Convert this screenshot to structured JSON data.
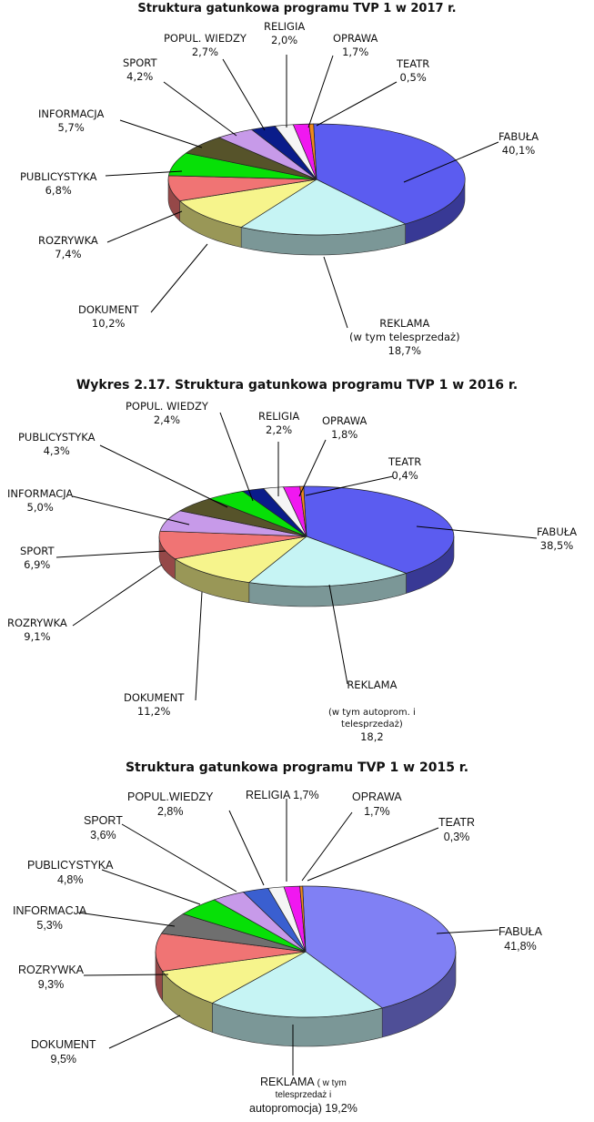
{
  "charts": [
    {
      "title": "Struktura gatunkowa programu TVP 1 w 2017 r.",
      "slices": [
        {
          "name": "FABUŁA",
          "value": 40.1,
          "label": "40,1%",
          "color": "#5b5cf0"
        },
        {
          "name": "REKLAMA",
          "name2": "(w tym telesprzedaż)",
          "value": 18.7,
          "label": "18,7%",
          "color": "#c6f4f4"
        },
        {
          "name": "DOKUMENT",
          "value": 10.2,
          "label": "10,2%",
          "color": "#f6f48c"
        },
        {
          "name": "ROZRYWKA",
          "value": 7.4,
          "label": "7,4%",
          "color": "#f07474"
        },
        {
          "name": "PUBLICYSTYKA",
          "value": 6.8,
          "label": "6,8%",
          "color": "#07e007"
        },
        {
          "name": "INFORMACJA",
          "value": 5.7,
          "label": "5,7%",
          "color": "#56532a"
        },
        {
          "name": "SPORT",
          "value": 4.2,
          "label": "4,2%",
          "color": "#c79ae9"
        },
        {
          "name": "POPUL. WIEDZY",
          "value": 2.7,
          "label": "2,7%",
          "color": "#0a1c8a"
        },
        {
          "name": "RELIGIA",
          "value": 2.0,
          "label": "2,0%",
          "color": "#f5f5f5"
        },
        {
          "name": "OPRAWA",
          "value": 1.7,
          "label": "1,7%",
          "color": "#f018f0"
        },
        {
          "name": "TEATR",
          "value": 0.5,
          "label": "0,5%",
          "color": "#f08a1a"
        }
      ]
    },
    {
      "title": "Wykres 2.17.  Struktura gatunkowa programu TVP 1 w 2016 r.",
      "slices": [
        {
          "name": "FABUŁA",
          "value": 38.5,
          "label": "38,5%",
          "color": "#5b5cf0"
        },
        {
          "name": "REKLAMA",
          "name2": "(w tym autoprom. i",
          "name3": "telesprzedaż)",
          "value": 18.2,
          "label": "18,2",
          "color": "#c6f4f4"
        },
        {
          "name": "DOKUMENT",
          "value": 11.2,
          "label": "11,2%",
          "color": "#f6f48c"
        },
        {
          "name": "ROZRYWKA",
          "value": 9.1,
          "label": "9,1%",
          "color": "#f07474"
        },
        {
          "name": "SPORT",
          "value": 6.9,
          "label": "6,9%",
          "color": "#c79ae9"
        },
        {
          "name": "INFORMACJA",
          "value": 5.0,
          "label": "5,0%",
          "color": "#56532a"
        },
        {
          "name": "PUBLICYSTYKA",
          "value": 4.3,
          "label": "4,3%",
          "color": "#07e007"
        },
        {
          "name": "POPUL. WIEDZY",
          "value": 2.4,
          "label": "2,4%",
          "color": "#0a1c8a"
        },
        {
          "name": "RELIGIA",
          "value": 2.2,
          "label": "2,2%",
          "color": "#f5f5f5"
        },
        {
          "name": "OPRAWA",
          "value": 1.8,
          "label": "1,8%",
          "color": "#f018f0"
        },
        {
          "name": "TEATR",
          "value": 0.4,
          "label": "0,4%",
          "color": "#f08a1a"
        }
      ]
    },
    {
      "title": "Struktura gatunkowa programu TVP 1 w 2015 r.",
      "slices": [
        {
          "name": "FABUŁA",
          "value": 41.8,
          "label": "41,8%",
          "color": "#8080f4"
        },
        {
          "name": "REKLAMA",
          "name_tail": "( w tym",
          "name2": "telesprzedaż i",
          "name3": "autopromocja) 19,2%",
          "value": 19.2,
          "label": "",
          "color": "#c6f4f4"
        },
        {
          "name": "DOKUMENT",
          "value": 9.5,
          "label": "9,5%",
          "color": "#f6f48c"
        },
        {
          "name": "ROZRYWKA",
          "value": 9.3,
          "label": "9,3%",
          "color": "#f07474"
        },
        {
          "name": "INFORMACJA",
          "value": 5.3,
          "label": "5,3%",
          "color": "#6f6f6f"
        },
        {
          "name": "PUBLICYSTYKA",
          "value": 4.8,
          "label": "4,8%",
          "color": "#07e007"
        },
        {
          "name": "SPORT",
          "value": 3.6,
          "label": "3,6%",
          "color": "#c79ae9"
        },
        {
          "name": "POPUL.WIEDZY",
          "value": 2.8,
          "label": "2,8%",
          "color": "#3a5fd0"
        },
        {
          "name": "RELIGIA",
          "value": 1.7,
          "label": "1,7%",
          "color": "#f5f5f5"
        },
        {
          "name": "OPRAWA",
          "value": 1.7,
          "label": "1,7%",
          "color": "#f018f0"
        },
        {
          "name": "TEATR",
          "value": 0.3,
          "label": "0,3%",
          "color": "#f08a1a"
        }
      ]
    }
  ],
  "chart_data": [
    {
      "type": "pie",
      "title": "Struktura gatunkowa programu TVP 1 w 2017 r.",
      "categories": [
        "FABUŁA",
        "REKLAMA (w tym telesprzedaż)",
        "DOKUMENT",
        "ROZRYWKA",
        "PUBLICYSTYKA",
        "INFORMACJA",
        "SPORT",
        "POPUL. WIEDZY",
        "RELIGIA",
        "OPRAWA",
        "TEATR"
      ],
      "values": [
        40.1,
        18.7,
        10.2,
        7.4,
        6.8,
        5.7,
        4.2,
        2.7,
        2.0,
        1.7,
        0.5
      ]
    },
    {
      "type": "pie",
      "title": "Wykres 2.17.  Struktura gatunkowa programu TVP 1 w 2016 r.",
      "categories": [
        "FABUŁA",
        "REKLAMA (w tym autoprom. i telesprzedaż)",
        "DOKUMENT",
        "ROZRYWKA",
        "SPORT",
        "INFORMACJA",
        "PUBLICYSTYKA",
        "POPUL. WIEDZY",
        "RELIGIA",
        "OPRAWA",
        "TEATR"
      ],
      "values": [
        38.5,
        18.2,
        11.2,
        9.1,
        6.9,
        5.0,
        4.3,
        2.4,
        2.2,
        1.8,
        0.4
      ]
    },
    {
      "type": "pie",
      "title": "Struktura gatunkowa programu TVP 1 w 2015 r.",
      "categories": [
        "FABUŁA",
        "REKLAMA ( w tym telesprzedaż i autopromocja)",
        "DOKUMENT",
        "ROZRYWKA",
        "INFORMACJA",
        "PUBLICYSTYKA",
        "SPORT",
        "POPUL.WIEDZY",
        "RELIGIA",
        "OPRAWA",
        "TEATR"
      ],
      "values": [
        41.8,
        19.2,
        9.5,
        9.3,
        5.3,
        4.8,
        3.6,
        2.8,
        1.7,
        1.7,
        0.3
      ]
    }
  ]
}
